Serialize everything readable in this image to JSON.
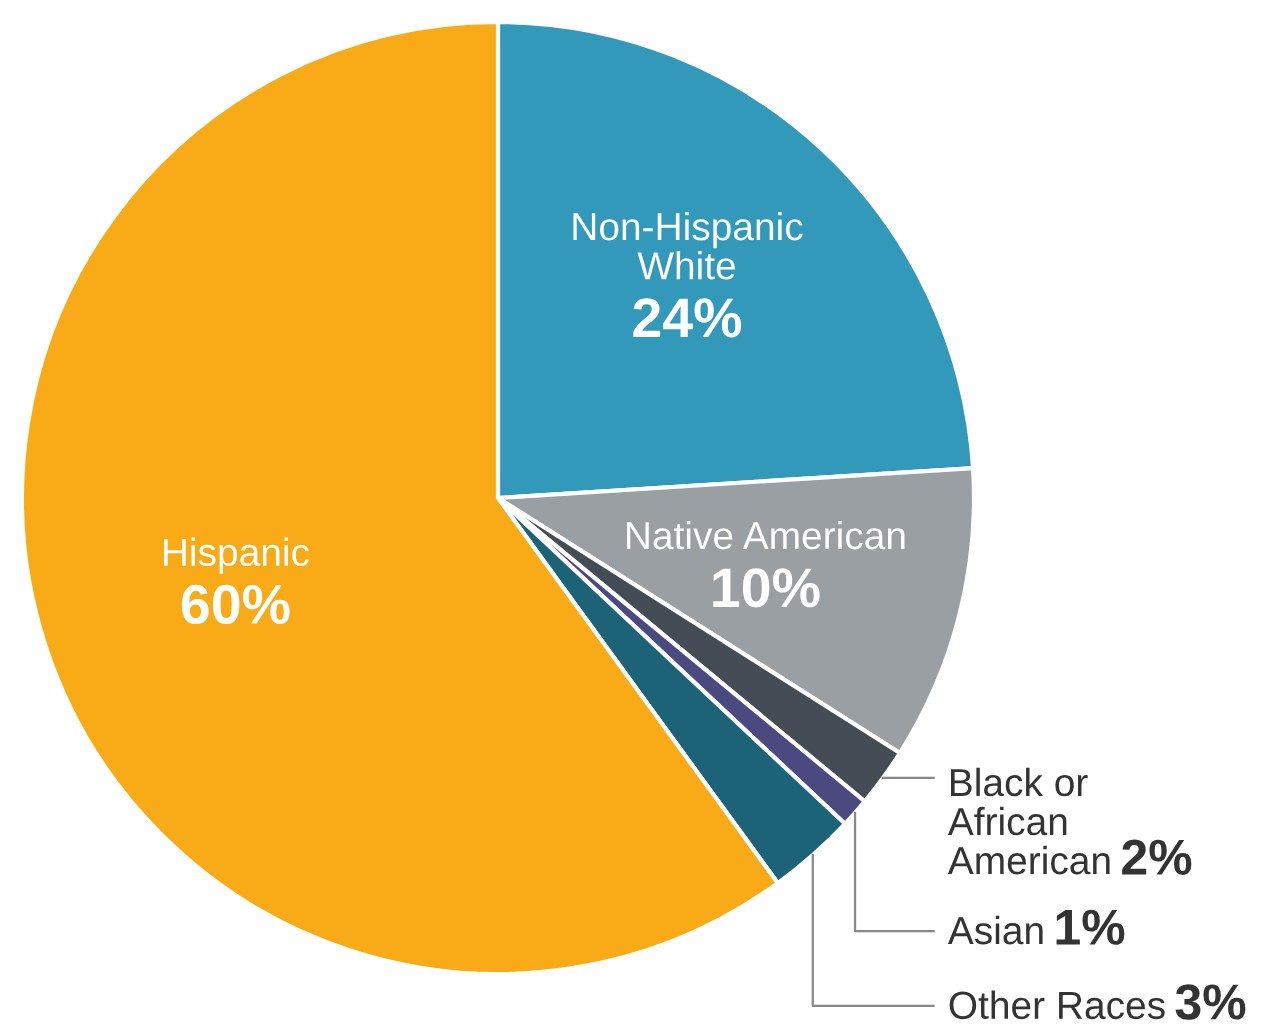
{
  "chart_data": {
    "type": "pie",
    "categories": [
      "Non-Hispanic White",
      "Native American",
      "Black or African American",
      "Asian",
      "Other Races",
      "Hispanic"
    ],
    "values": [
      24,
      10,
      2,
      1,
      3,
      60
    ],
    "colors": [
      "#3399bb",
      "#9a9fa3",
      "#444c55",
      "#4a4a80",
      "#1c6378",
      "#f9ab17"
    ],
    "value_labels": [
      "24%",
      "10%",
      "2%",
      "1%",
      "3%",
      "60%"
    ]
  }
}
